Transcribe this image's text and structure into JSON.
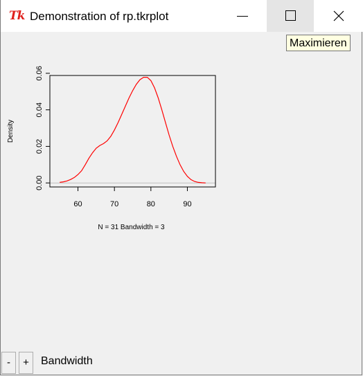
{
  "window": {
    "title": "Demonstration of rp.tkrplot",
    "icon": "tk-feather-logo",
    "minimize_icon": "minimize-icon",
    "maximize_icon": "maximize-icon",
    "close_icon": "close-icon",
    "tooltip": "Maximieren",
    "icon_text": "Tk"
  },
  "controls": {
    "minus_label": "-",
    "plus_label": "+",
    "label": "Bandwidth"
  },
  "chart_data": {
    "type": "line",
    "title": "",
    "xlabel": "N = 31   Bandwidth = 3",
    "ylabel": "Density",
    "xlim": [
      52.3,
      97.7
    ],
    "ylim": [
      -0.0022,
      0.0588
    ],
    "xticks": [
      60,
      70,
      80,
      90
    ],
    "yticks": [
      0.0,
      0.02,
      0.04,
      0.06
    ],
    "xtick_labels": [
      "60",
      "70",
      "80",
      "90"
    ],
    "ytick_labels": [
      "0.00",
      "0.02",
      "0.04",
      "0.06"
    ],
    "color": "#ff0000",
    "grid": false,
    "series": [
      {
        "x": [
          55,
          56,
          57,
          58,
          59,
          60,
          61,
          62,
          63,
          64,
          65,
          66,
          67,
          68,
          69,
          70,
          71,
          72,
          73,
          74,
          75,
          76,
          77,
          78,
          79,
          80,
          81,
          82,
          83,
          84,
          85,
          86,
          87,
          88,
          89,
          90,
          91,
          92,
          93,
          94,
          95
        ],
        "y": [
          0.0003,
          0.0006,
          0.0011,
          0.0019,
          0.003,
          0.0046,
          0.0067,
          0.01,
          0.0135,
          0.0165,
          0.019,
          0.0205,
          0.0215,
          0.023,
          0.0255,
          0.029,
          0.033,
          0.0375,
          0.042,
          0.0465,
          0.0505,
          0.054,
          0.0565,
          0.0578,
          0.0578,
          0.056,
          0.052,
          0.0465,
          0.04,
          0.033,
          0.0262,
          0.02,
          0.0146,
          0.01,
          0.0063,
          0.0036,
          0.0018,
          0.0008,
          0.0003,
          0.0001,
          0.0
        ]
      }
    ]
  }
}
